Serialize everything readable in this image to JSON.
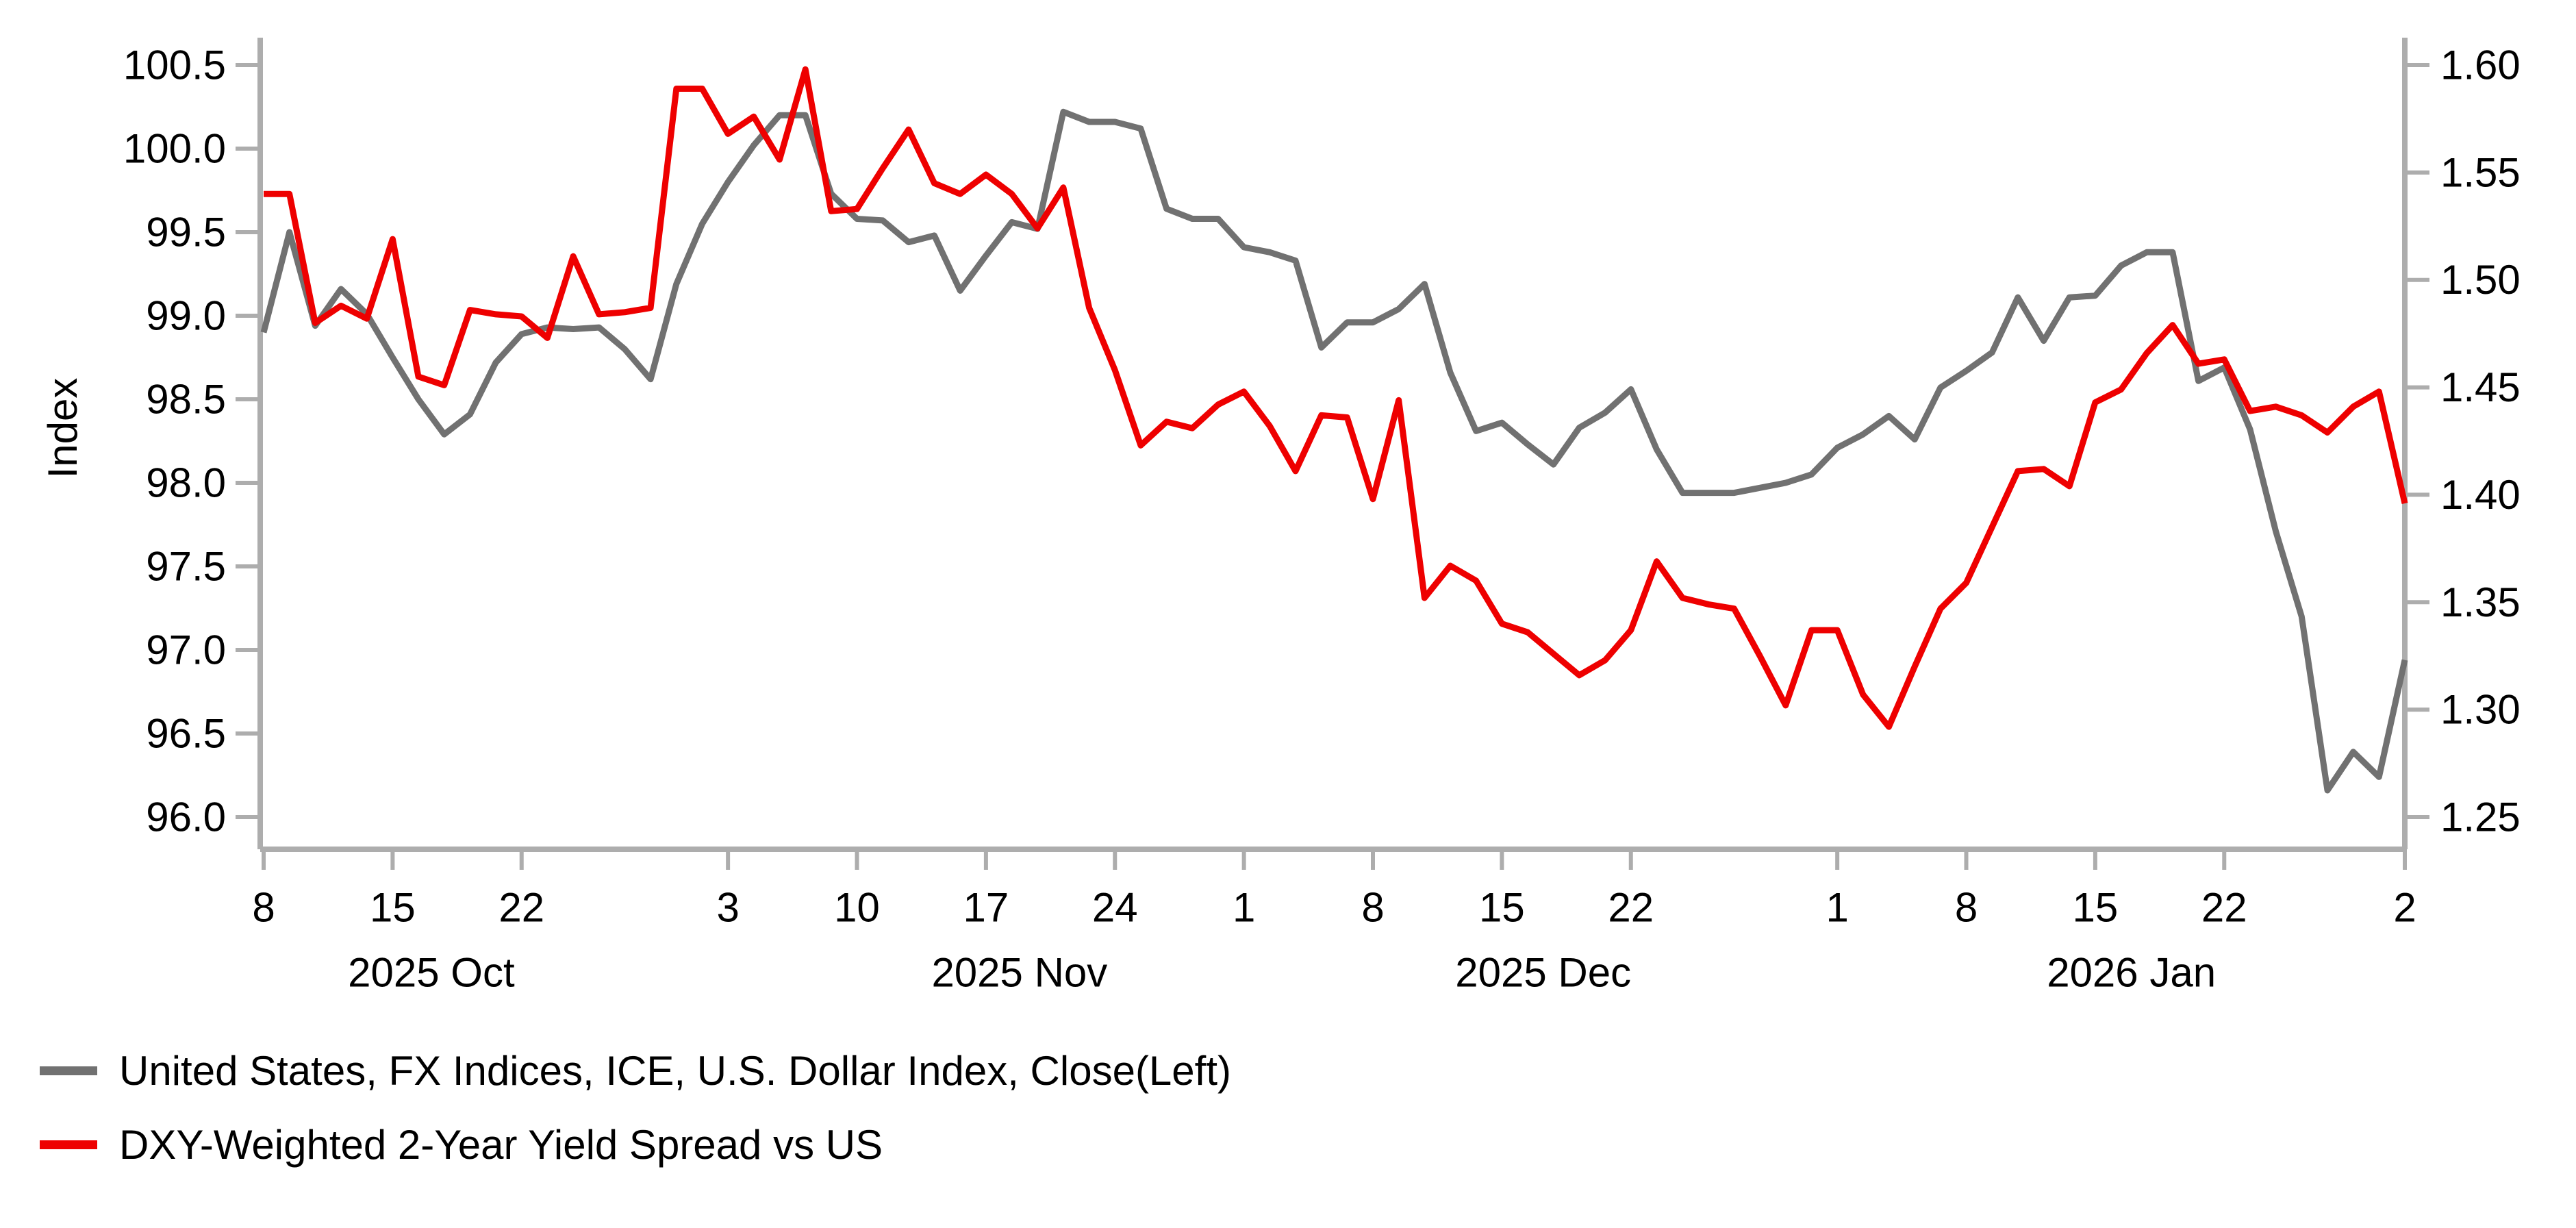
{
  "chart_data": {
    "type": "line",
    "title": "",
    "left_axis": {
      "label": "Index",
      "ticks": [
        "100.5",
        "100.0",
        "99.5",
        "99.0",
        "98.5",
        "98.0",
        "97.5",
        "97.0",
        "96.5",
        "96.0"
      ],
      "range": [
        96.0,
        100.5
      ]
    },
    "right_axis": {
      "label": "",
      "ticks": [
        "1.60",
        "1.55",
        "1.50",
        "1.45",
        "1.40",
        "1.35",
        "1.30",
        "1.25"
      ],
      "range": [
        1.25,
        1.6
      ]
    },
    "x_axis": {
      "tick_labels": [
        "8",
        "15",
        "22",
        "3",
        "10",
        "17",
        "24",
        "1",
        "8",
        "15",
        "22",
        "1",
        "8",
        "15",
        "22",
        "2"
      ],
      "tick_indices": [
        0,
        5,
        10,
        18,
        23,
        28,
        33,
        38,
        43,
        48,
        53,
        61,
        66,
        71,
        76,
        83
      ],
      "month_labels": [
        {
          "label": "2025 Oct",
          "index": 6.5
        },
        {
          "label": "2025 Nov",
          "index": 29.3
        },
        {
          "label": "2025 Dec",
          "index": 49.6
        },
        {
          "label": "2026 Jan",
          "index": 72.4
        }
      ]
    },
    "dates": [
      "2025-10-08",
      "2025-10-09",
      "2025-10-10",
      "2025-10-13",
      "2025-10-14",
      "2025-10-15",
      "2025-10-16",
      "2025-10-17",
      "2025-10-20",
      "2025-10-21",
      "2025-10-22",
      "2025-10-23",
      "2025-10-24",
      "2025-10-27",
      "2025-10-28",
      "2025-10-29",
      "2025-10-30",
      "2025-10-31",
      "2025-11-03",
      "2025-11-04",
      "2025-11-05",
      "2025-11-06",
      "2025-11-07",
      "2025-11-10",
      "2025-11-11",
      "2025-11-12",
      "2025-11-13",
      "2025-11-14",
      "2025-11-17",
      "2025-11-18",
      "2025-11-19",
      "2025-11-20",
      "2025-11-21",
      "2025-11-24",
      "2025-11-25",
      "2025-11-26",
      "2025-11-27",
      "2025-11-28",
      "2025-12-01",
      "2025-12-02",
      "2025-12-03",
      "2025-12-04",
      "2025-12-05",
      "2025-12-08",
      "2025-12-09",
      "2025-12-10",
      "2025-12-11",
      "2025-12-12",
      "2025-12-15",
      "2025-12-16",
      "2025-12-17",
      "2025-12-18",
      "2025-12-19",
      "2025-12-22",
      "2025-12-23",
      "2025-12-24",
      "2025-12-25",
      "2025-12-26",
      "2025-12-29",
      "2025-12-30",
      "2025-12-31",
      "2026-01-01",
      "2026-01-02",
      "2026-01-05",
      "2026-01-06",
      "2026-01-07",
      "2026-01-08",
      "2026-01-09",
      "2026-01-12",
      "2026-01-13",
      "2026-01-14",
      "2026-01-15",
      "2026-01-16",
      "2026-01-19",
      "2026-01-20",
      "2026-01-21",
      "2026-01-22",
      "2026-01-23",
      "2026-01-26",
      "2026-01-27",
      "2026-01-28",
      "2026-01-29",
      "2026-01-30",
      "2026-02-02"
    ],
    "series": [
      {
        "name": "United States, FX Indices, ICE, U.S. Dollar Index, Close(Left)",
        "axis": "left",
        "color": "#717171",
        "values": [
          98.9,
          99.5,
          98.94,
          99.16,
          99.01,
          98.75,
          98.5,
          98.29,
          98.41,
          98.72,
          98.89,
          98.93,
          98.92,
          98.93,
          98.8,
          98.62,
          99.19,
          99.55,
          99.8,
          100.02,
          100.2,
          100.2,
          99.73,
          99.58,
          99.57,
          99.44,
          99.48,
          99.15,
          99.36,
          99.56,
          99.52,
          100.22,
          100.16,
          100.16,
          100.12,
          99.64,
          99.58,
          99.58,
          99.41,
          99.38,
          99.33,
          98.81,
          98.96,
          98.96,
          99.04,
          99.19,
          98.66,
          98.31,
          98.36,
          98.23,
          98.11,
          98.33,
          98.42,
          98.56,
          98.2,
          97.94,
          97.94,
          97.94,
          97.97,
          98.0,
          98.05,
          98.21,
          98.29,
          98.4,
          98.26,
          98.57,
          98.67,
          98.78,
          99.11,
          98.85,
          99.11,
          99.12,
          99.3,
          99.38,
          99.38,
          98.61,
          98.69,
          98.32,
          97.71,
          97.2,
          96.16,
          96.39,
          96.24,
          96.94
        ]
      },
      {
        "name": "DXY-Weighted 2-Year Yield Spread vs US",
        "axis": "right",
        "color": "#EE0000",
        "values": [
          1.54,
          1.54,
          1.48,
          1.488,
          1.482,
          1.519,
          1.455,
          1.451,
          1.486,
          1.484,
          1.483,
          1.473,
          1.511,
          1.484,
          1.485,
          1.487,
          1.589,
          1.589,
          1.568,
          1.576,
          1.556,
          1.598,
          1.532,
          1.533,
          1.552,
          1.57,
          1.545,
          1.54,
          1.549,
          1.54,
          1.524,
          1.543,
          1.487,
          1.458,
          1.423,
          1.434,
          1.431,
          1.442,
          1.448,
          1.432,
          1.411,
          1.437,
          1.436,
          1.398,
          1.444,
          1.352,
          1.367,
          1.36,
          1.34,
          1.336,
          1.326,
          1.316,
          1.323,
          1.337,
          1.369,
          1.352,
          1.349,
          1.347,
          1.325,
          1.302,
          1.337,
          1.337,
          1.307,
          1.292,
          1.32,
          1.347,
          1.359,
          1.385,
          1.411,
          1.412,
          1.404,
          1.443,
          1.449,
          1.466,
          1.479,
          1.461,
          1.463,
          1.439,
          1.441,
          1.437,
          1.429,
          1.441,
          1.448,
          1.396
        ]
      }
    ],
    "legend_position": "bottom-left",
    "grid": "off",
    "axis_color": "#ADADAD"
  }
}
